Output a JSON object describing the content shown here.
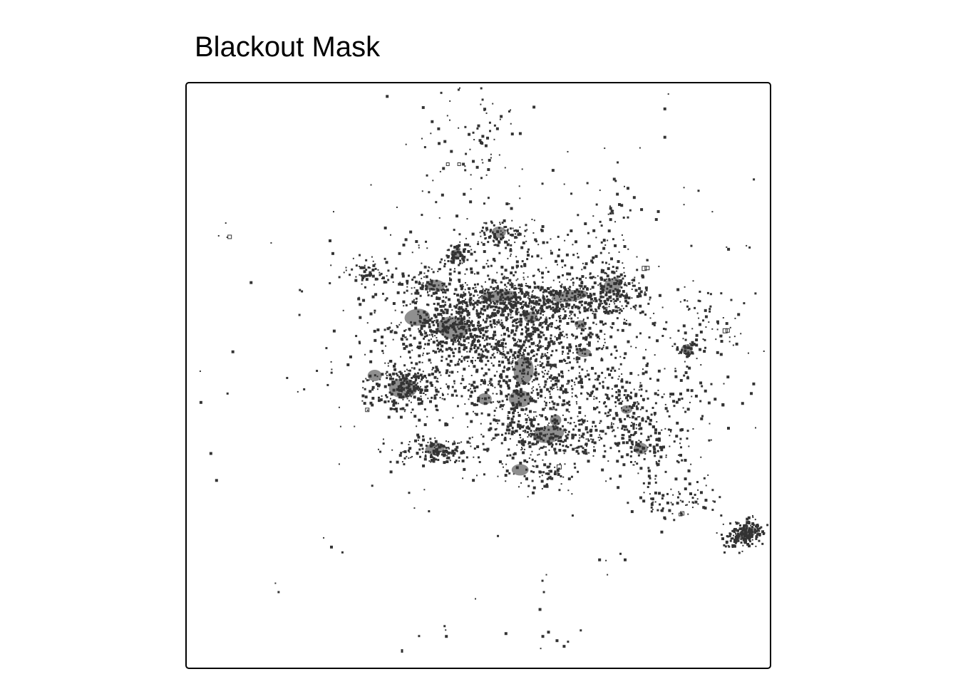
{
  "map": {
    "title": "Blackout Mask",
    "mark_color": "#333333",
    "background_color": "#ffffff",
    "frame_color": "#000000"
  }
}
